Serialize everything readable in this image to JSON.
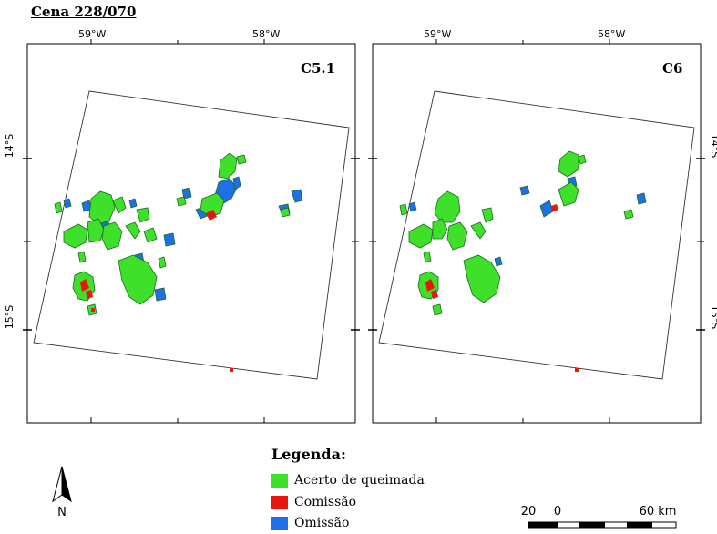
{
  "title": "Cena 228/070",
  "coordinates": {
    "lon_west": "59°W",
    "lon_east": "58°W",
    "lat_north": "14°S",
    "lat_south": "15°S"
  },
  "panels": [
    {
      "label": "C5.1"
    },
    {
      "label": "C6"
    }
  ],
  "legend": {
    "title": "Legenda:",
    "items": [
      {
        "label": "Acerto de queimada",
        "color": "#3fe02a"
      },
      {
        "label": "Comissão",
        "color": "#e8160c"
      },
      {
        "label": "Omissão",
        "color": "#1f6fe8"
      }
    ]
  },
  "north_arrow": {
    "label": "N",
    "icon": "north-arrow-icon"
  },
  "scale_bar": {
    "labels": [
      "20",
      "0",
      "60 km"
    ]
  },
  "colors": {
    "hit_outline": "#1a6b22"
  }
}
